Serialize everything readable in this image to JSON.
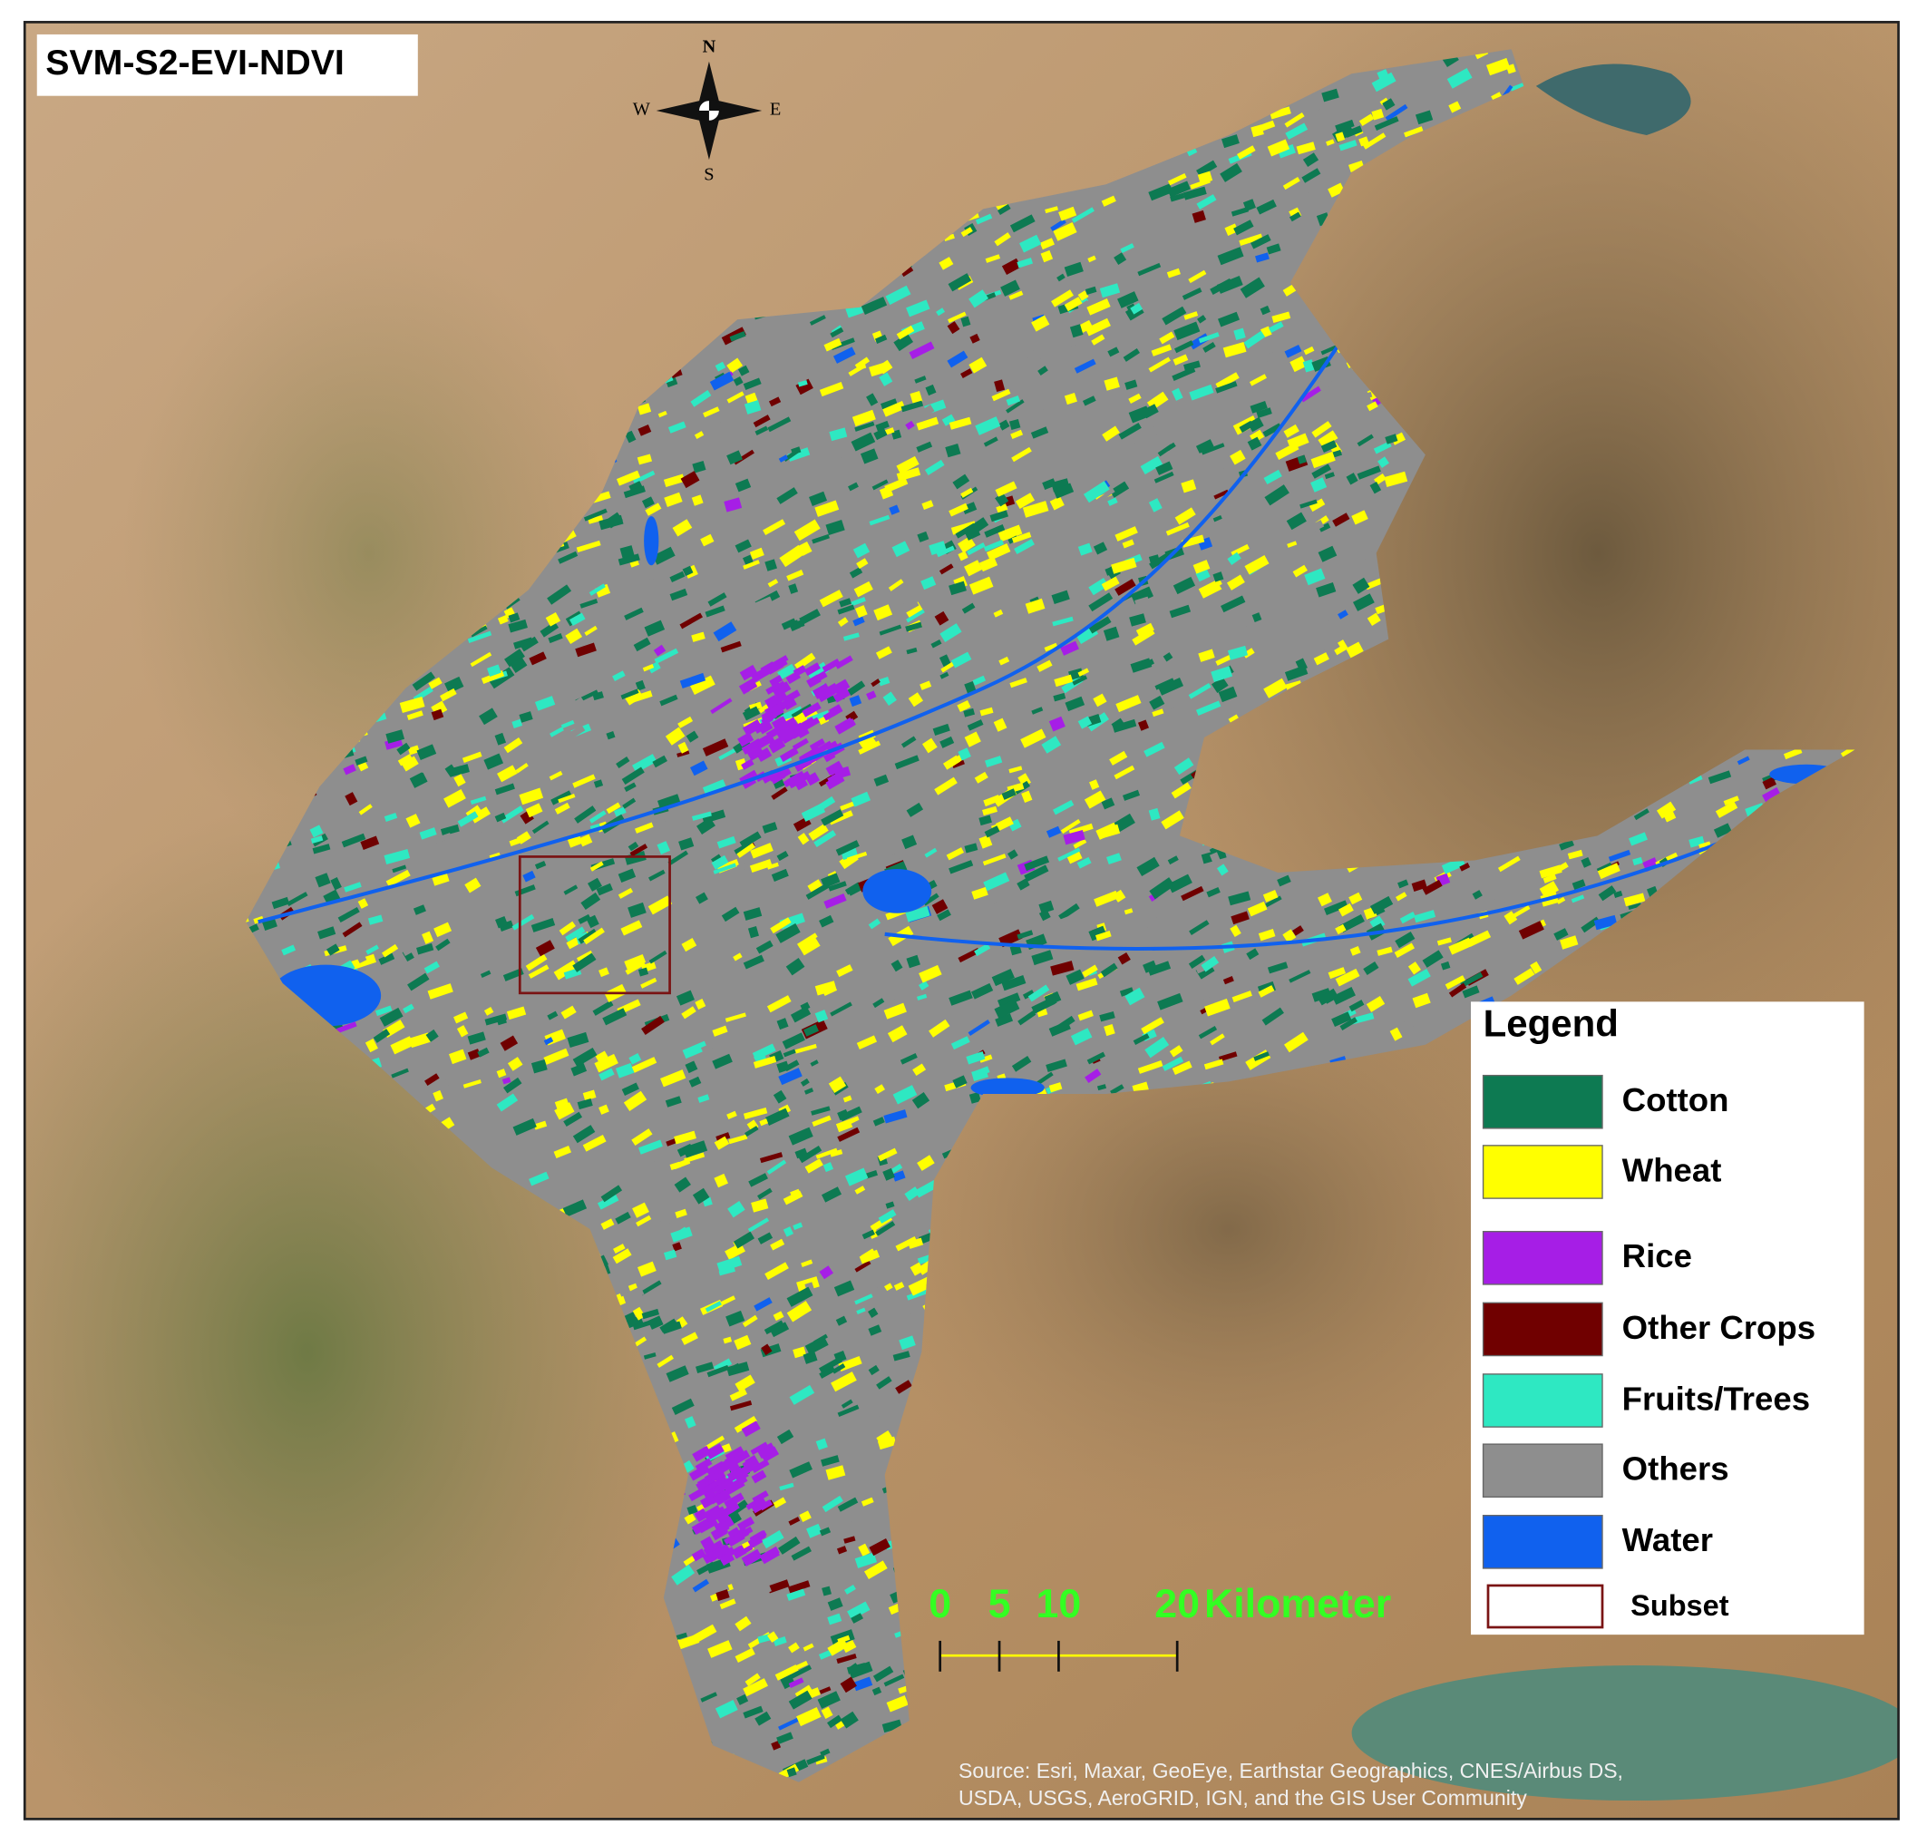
{
  "title": "SVM-S2-EVI-NDVI",
  "compass": {
    "north": "N",
    "south": "S",
    "west": "W",
    "east": "E"
  },
  "legend": {
    "title": "Legend",
    "items": [
      {
        "label": "Cotton",
        "color": "#0d7a52"
      },
      {
        "label": "Wheat",
        "color": "#ffff00"
      },
      {
        "label": "Rice",
        "color": "#a61ee6"
      },
      {
        "label": "Other Crops",
        "color": "#700000"
      },
      {
        "label": "Fruits/Trees",
        "color": "#2ee8c2"
      },
      {
        "label": "Others",
        "color": "#8e8e8e"
      },
      {
        "label": "Water",
        "color": "#1061ee"
      },
      {
        "label": "Subset",
        "color": "#7a1414",
        "outline": true
      }
    ]
  },
  "scale_bar": {
    "ticks": [
      0,
      5,
      10,
      20
    ],
    "unit": "Kilometer",
    "color": "#33ff22"
  },
  "source": [
    "Source: Esri, Maxar, GeoEye, Earthstar Geographics, CNES/Airbus DS,",
    "USDA, USGS, AeroGRID, IGN, and the GIS User Community"
  ]
}
